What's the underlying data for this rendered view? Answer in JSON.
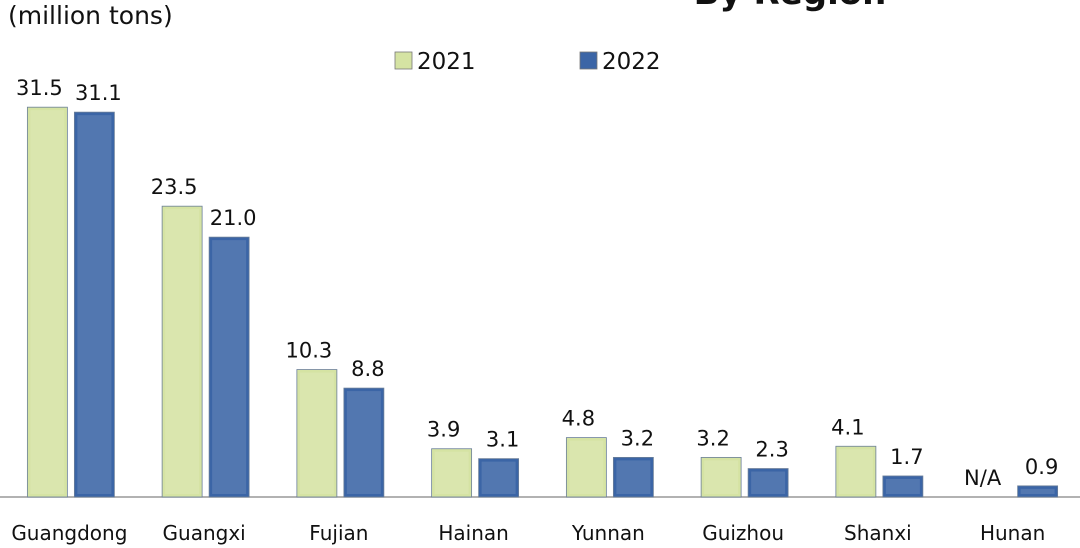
{
  "chart_data": {
    "type": "bar",
    "title": "By Region",
    "subtitle": "(million tons)",
    "categories": [
      "Guangdong",
      "Guangxi",
      "Fujian",
      "Hainan",
      "Yunnan",
      "Guizhou",
      "Shanxi",
      "Hunan"
    ],
    "series": [
      {
        "name": "2021",
        "color": "#d5e3a3",
        "values": [
          31.5,
          23.5,
          10.3,
          3.9,
          4.8,
          3.2,
          4.1,
          null
        ],
        "value_labels": [
          "31.5",
          "23.5",
          "10.3",
          "3.9",
          "4.8",
          "3.2",
          "4.1",
          "N/A"
        ]
      },
      {
        "name": "2022",
        "color": "#3b65a6",
        "values": [
          31.1,
          21.0,
          8.8,
          3.1,
          3.2,
          2.3,
          1.7,
          0.9
        ],
        "value_labels": [
          "31.1",
          "21.0",
          "8.8",
          "3.1",
          "3.2",
          "2.3",
          "1.7",
          "0.9"
        ]
      }
    ],
    "ylim": [
      0,
      40
    ],
    "legend": "top"
  }
}
